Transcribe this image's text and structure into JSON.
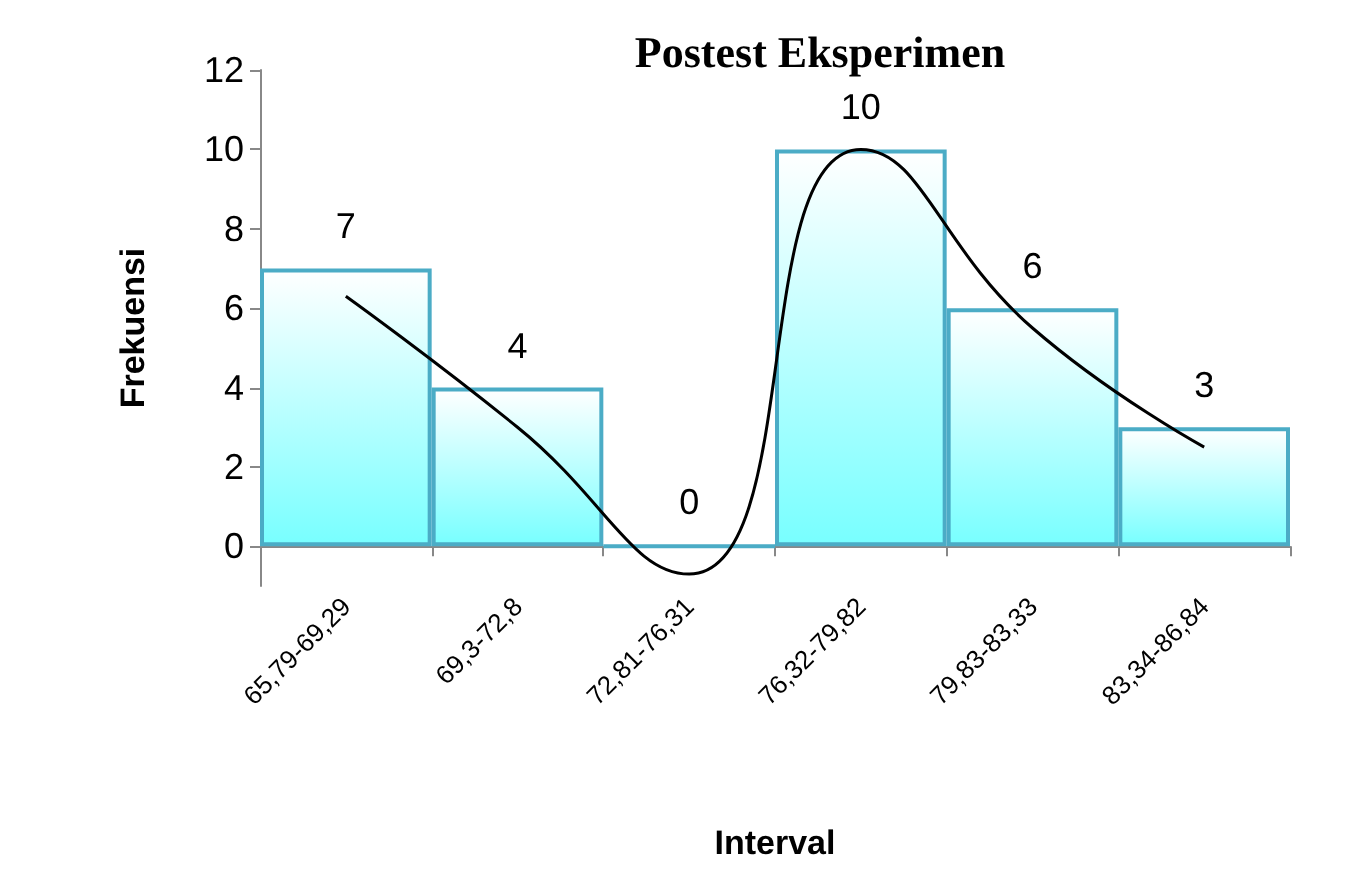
{
  "chart_data": {
    "type": "bar",
    "title": "Postest Eksperimen",
    "xlabel": "Interval",
    "ylabel": "Frekuensi",
    "categories": [
      "65,79-69,29",
      "69,3-72,8",
      "72,81-76,31",
      "76,32-79,82",
      "79,83-83,33",
      "83,34-86,84"
    ],
    "series": [
      {
        "color": "#4bacc6",
        "values": [
          7,
          4,
          0,
          10,
          6,
          3
        ],
        "value_labels": [
          "7",
          "4",
          "0",
          "10",
          "6",
          "3"
        ]
      },
      {
        "type": "line",
        "color": "#000000",
        "values": [
          6.3,
          3,
          -0.7,
          10,
          5.5,
          2.5
        ]
      }
    ],
    "ylim": [
      -1,
      12
    ],
    "yticks": [
      0,
      2,
      4,
      6,
      8,
      10,
      12
    ],
    "grid": false,
    "marker": "none",
    "line_style": "solid"
  }
}
